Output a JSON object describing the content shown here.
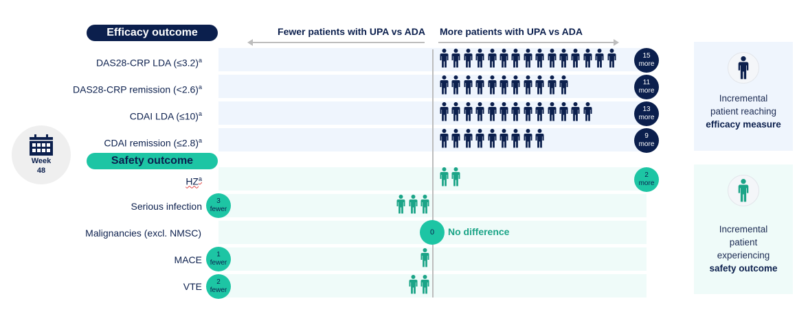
{
  "colors": {
    "navy": "#0b1f4d",
    "teal": "#1dc5a4",
    "teal_icon": "#1ba487",
    "efficacy_band": "#eff5fd",
    "safety_band": "#effbf9",
    "axis": "#bdbdbd"
  },
  "header": {
    "efficacy_pill": "Efficacy outcome",
    "safety_pill": "Safety outcome",
    "left_direction": "Fewer patients with UPA vs ADA",
    "right_direction": "More patients with UPA vs ADA"
  },
  "timepoint": {
    "icon": "calendar-icon",
    "label_line1": "Week",
    "label_line2": "48"
  },
  "chart_data": {
    "type": "pictogram",
    "title": "",
    "xlabel_negative": "Fewer patients with UPA vs ADA",
    "xlabel_positive": "More patients with UPA vs ADA",
    "unit_icon": "person-icon",
    "groups": [
      {
        "name": "Efficacy outcome",
        "color": "#0b1f4d",
        "rows": [
          {
            "label": "DAS28-CRP LDA (≤3.2)",
            "sup": "a",
            "value": 15,
            "badge_num": "15",
            "badge_word": "more"
          },
          {
            "label": "DAS28-CRP remission (<2.6)",
            "sup": "a",
            "value": 11,
            "badge_num": "11",
            "badge_word": "more"
          },
          {
            "label": "CDAI LDA (≤10)",
            "sup": "a",
            "value": 13,
            "badge_num": "13",
            "badge_word": "more"
          },
          {
            "label": "CDAI remission (≤2.8)",
            "sup": "a",
            "value": 9,
            "badge_num": "9",
            "badge_word": "more"
          }
        ]
      },
      {
        "name": "Safety outcome",
        "color": "#1ba487",
        "rows": [
          {
            "label": "HZ",
            "sup": "a",
            "value": 2,
            "badge_num": "2",
            "badge_word": "more"
          },
          {
            "label": "Serious infection",
            "sup": "",
            "value": -3,
            "badge_num": "3",
            "badge_word": "fewer"
          },
          {
            "label": "Malignancies (excl. NMSC)",
            "sup": "",
            "value": 0,
            "badge_num": "0",
            "badge_word": "",
            "note": "No difference"
          },
          {
            "label": "MACE",
            "sup": "",
            "value": -1,
            "badge_num": "1",
            "badge_word": "fewer"
          },
          {
            "label": "VTE",
            "sup": "",
            "value": -2,
            "badge_num": "2",
            "badge_word": "fewer"
          }
        ]
      }
    ]
  },
  "legend": {
    "efficacy": {
      "icon": "person-icon",
      "line1": "Incremental",
      "line2": "patient reaching",
      "bold": "efficacy measure"
    },
    "safety": {
      "icon": "person-icon",
      "line1": "Incremental",
      "line2": "patient",
      "line3": "experiencing",
      "bold": "safety outcome"
    }
  }
}
